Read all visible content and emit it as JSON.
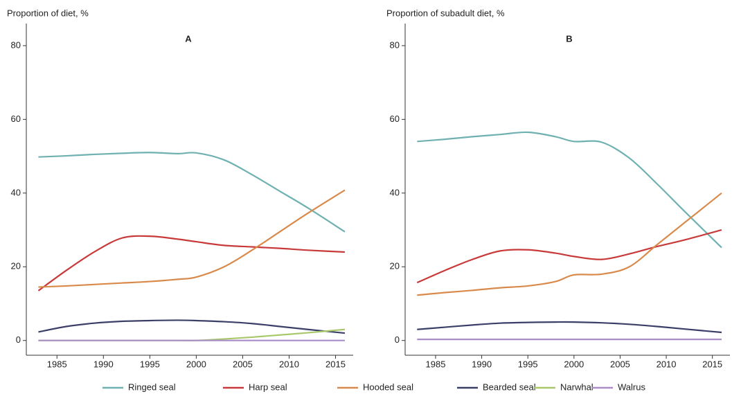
{
  "chart_data": [
    {
      "type": "line",
      "title": "A",
      "ylabel": "Proportion of diet, %",
      "x": [
        1983,
        1986,
        1989,
        1992,
        1995,
        1998,
        2000,
        2003,
        2006,
        2009,
        2012,
        2016
      ],
      "xlim": [
        1981.7,
        2016.9
      ],
      "xticks": [
        1985,
        1990,
        1995,
        2000,
        2005,
        2010,
        2015
      ],
      "ylim": [
        -4,
        86
      ],
      "yticks": [
        0,
        20,
        40,
        60,
        80
      ],
      "grid": false,
      "series": [
        {
          "name": "Ringed seal",
          "color": "#6fb0b0",
          "values": [
            49.8,
            50.1,
            50.5,
            50.8,
            51,
            50.7,
            50.9,
            49,
            45,
            40.5,
            36,
            29.5
          ]
        },
        {
          "name": "Harp seal",
          "color": "#c8393a",
          "values": [
            13.5,
            19,
            24,
            27.8,
            28.3,
            27.5,
            26.8,
            25.8,
            25.4,
            25,
            24.5,
            24
          ]
        },
        {
          "name": "Hooded seal",
          "color": "#d98a4a",
          "values": [
            14.5,
            14.8,
            15.2,
            15.6,
            16,
            16.6,
            17.2,
            20,
            24.5,
            29.5,
            34.5,
            40.8
          ]
        },
        {
          "name": "Bearded seal",
          "color": "#3b3f68",
          "values": [
            2.3,
            3.8,
            4.7,
            5.2,
            5.4,
            5.5,
            5.4,
            5.1,
            4.6,
            3.8,
            3,
            2
          ]
        },
        {
          "name": "Narwhal",
          "color": "#a8c86a",
          "values": [
            0,
            0,
            0,
            0,
            0,
            0,
            0,
            0.4,
            0.9,
            1.5,
            2.1,
            3
          ]
        },
        {
          "name": "Walrus",
          "color": "#a98cc8",
          "values": [
            0,
            0,
            0,
            0,
            0,
            0,
            0,
            0,
            0,
            0,
            0,
            0
          ]
        }
      ]
    },
    {
      "type": "line",
      "title": "B",
      "ylabel": "Proportion of subadult diet, %",
      "x": [
        1983,
        1986,
        1989,
        1992,
        1995,
        1998,
        2000,
        2003,
        2006,
        2009,
        2012,
        2016
      ],
      "xlim": [
        1981.7,
        2016.9
      ],
      "xticks": [
        1985,
        1990,
        1995,
        2000,
        2005,
        2010,
        2015
      ],
      "ylim": [
        -4,
        86
      ],
      "yticks": [
        0,
        20,
        40,
        60,
        80
      ],
      "grid": false,
      "series": [
        {
          "color": "#6fb0b0",
          "values": [
            54,
            54.6,
            55.3,
            55.9,
            56.5,
            55.3,
            54,
            53.8,
            49.5,
            42.5,
            35,
            25.2
          ]
        },
        {
          "color": "#c8393a",
          "values": [
            15.7,
            19,
            22,
            24.3,
            24.6,
            23.7,
            22.8,
            22,
            23.5,
            25.5,
            27.3,
            30
          ]
        },
        {
          "color": "#d98a4a",
          "values": [
            12.3,
            13,
            13.6,
            14.3,
            14.8,
            16,
            17.8,
            18,
            20,
            26,
            32,
            40
          ]
        },
        {
          "color": "#3b3f68",
          "values": [
            3,
            3.6,
            4.2,
            4.7,
            4.9,
            5,
            5,
            4.8,
            4.4,
            3.8,
            3.1,
            2.2
          ]
        },
        {
          "color": "#a98cc8",
          "values": [
            0.3,
            0.3,
            0.3,
            0.3,
            0.3,
            0.3,
            0.3,
            0.3,
            0.3,
            0.3,
            0.3,
            0.3
          ]
        }
      ]
    }
  ]
}
